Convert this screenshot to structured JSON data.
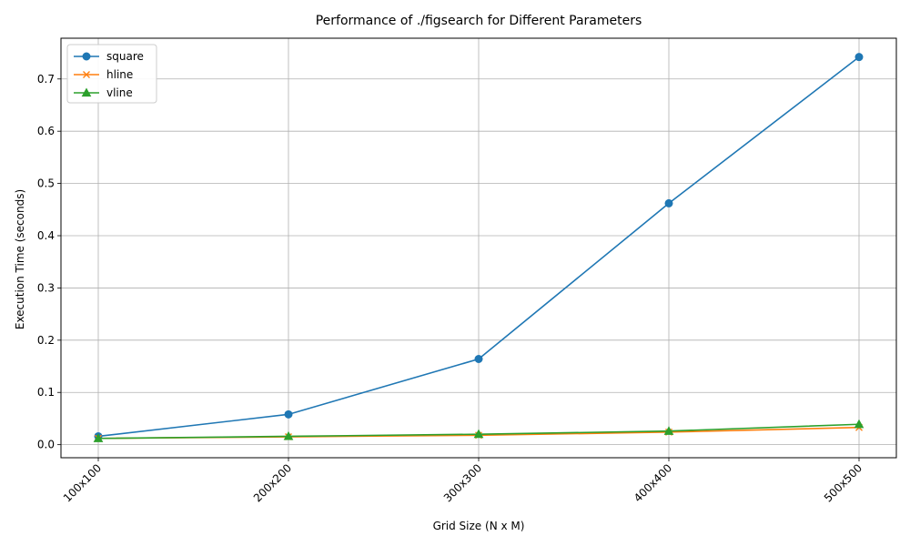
{
  "chart_data": {
    "type": "line",
    "title": "Performance of ./figsearch for Different Parameters",
    "xlabel": "Grid Size (N x M)",
    "ylabel": "Execution Time (seconds)",
    "categories": [
      "100x100",
      "200x200",
      "300x300",
      "400x400",
      "500x500"
    ],
    "ylim": [
      -0.025,
      0.778
    ],
    "yticks": [
      "0.0",
      "0.1",
      "0.2",
      "0.3",
      "0.4",
      "0.5",
      "0.6",
      "0.7"
    ],
    "grid": true,
    "legend_position": "top-left",
    "series": [
      {
        "name": "square",
        "values": [
          0.016,
          0.058,
          0.164,
          0.462,
          0.742
        ],
        "color": "#1f77b4",
        "marker": "circle"
      },
      {
        "name": "hline",
        "values": [
          0.012,
          0.015,
          0.018,
          0.024,
          0.033
        ],
        "color": "#ff7f0e",
        "marker": "x"
      },
      {
        "name": "vline",
        "values": [
          0.012,
          0.016,
          0.02,
          0.026,
          0.039
        ],
        "color": "#2ca02c",
        "marker": "triangle"
      }
    ]
  }
}
